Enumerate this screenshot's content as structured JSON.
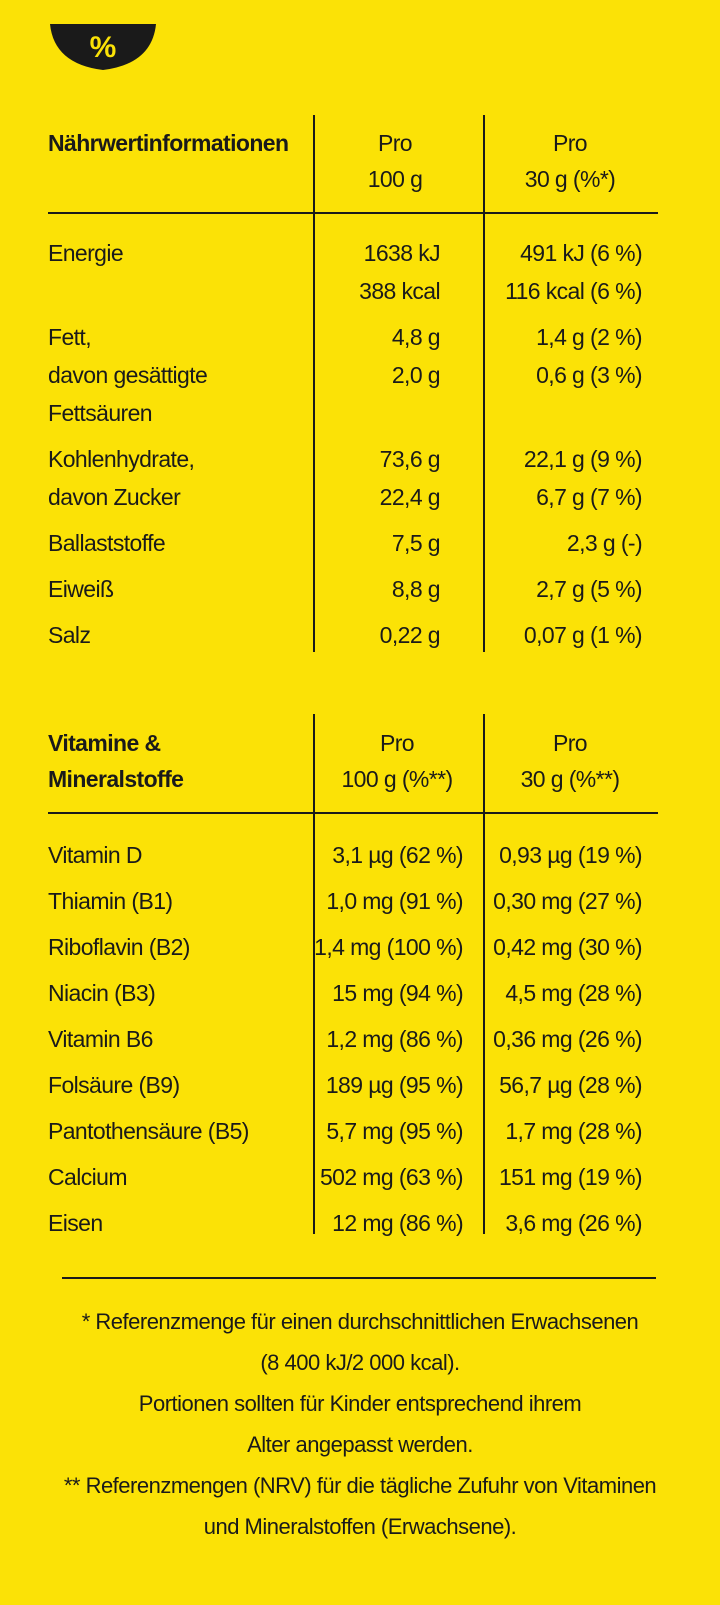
{
  "icon": "%",
  "nutrition": {
    "header": [
      [
        "Nährwertinformationen"
      ],
      [
        "Pro",
        "100 g"
      ],
      [
        "Pro",
        "30 g (%*)"
      ]
    ],
    "rows": [
      [
        [
          "Energie"
        ],
        [
          "1638 kJ",
          "388 kcal"
        ],
        [
          "491 kJ (6 %)",
          "116 kcal (6 %)"
        ]
      ],
      [
        [
          "Fett,",
          "davon gesättigte",
          "Fettsäuren"
        ],
        [
          "4,8 g",
          "2,0 g"
        ],
        [
          "1,4 g (2 %)",
          "0,6 g (3 %)"
        ]
      ],
      [
        [
          "Kohlenhydrate,",
          "davon Zucker"
        ],
        [
          "73,6 g",
          "22,4 g"
        ],
        [
          "22,1 g (9 %)",
          "6,7 g (7 %)"
        ]
      ],
      [
        [
          "Ballaststoffe"
        ],
        [
          "7,5 g"
        ],
        [
          "2,3 g (-)"
        ]
      ],
      [
        [
          "Eiweiß"
        ],
        [
          "8,8 g"
        ],
        [
          "2,7 g (5 %)"
        ]
      ],
      [
        [
          "Salz"
        ],
        [
          "0,22 g"
        ],
        [
          "0,07 g (1 %)"
        ]
      ]
    ]
  },
  "vitamins": {
    "header": [
      [
        "Vitamine &",
        "Mineralstoffe"
      ],
      [
        "Pro",
        "100 g (%**)"
      ],
      [
        "Pro",
        "30 g (%**)"
      ]
    ],
    "rows": [
      [
        [
          "Vitamin D"
        ],
        [
          "3,1 µg (62 %)"
        ],
        [
          "0,93 µg (19 %)"
        ]
      ],
      [
        [
          "Thiamin (B1)"
        ],
        [
          "1,0 mg (91 %)"
        ],
        [
          "0,30 mg (27 %)"
        ]
      ],
      [
        [
          "Riboflavin (B2)"
        ],
        [
          "1,4 mg (100 %)"
        ],
        [
          "0,42 mg (30 %)"
        ]
      ],
      [
        [
          "Niacin (B3)"
        ],
        [
          "15 mg (94 %)"
        ],
        [
          "4,5 mg (28 %)"
        ]
      ],
      [
        [
          "Vitamin B6"
        ],
        [
          "1,2 mg (86 %)"
        ],
        [
          "0,36 mg (26 %)"
        ]
      ],
      [
        [
          "Folsäure (B9)"
        ],
        [
          "189 µg (95 %)"
        ],
        [
          "56,7 µg (28 %)"
        ]
      ],
      [
        [
          "Pantothensäure (B5)"
        ],
        [
          "5,7 mg (95 %)"
        ],
        [
          "1,7 mg (28 %)"
        ]
      ],
      [
        [
          "Calcium"
        ],
        [
          "502 mg (63 %)"
        ],
        [
          "151 mg (19 %)"
        ]
      ],
      [
        [
          "Eisen"
        ],
        [
          "12 mg (86 %)"
        ],
        [
          "3,6 mg (26 %)"
        ]
      ]
    ]
  },
  "footnotes": [
    "* Referenzmenge für einen durchschnittlichen Erwachsenen",
    "(8 400 kJ/2 000 kcal).",
    "Portionen sollten für Kinder entsprechend ihrem",
    "Alter angepasst werden.",
    "** Referenzmengen (NRV) für die tägliche Zufuhr von Vitaminen",
    "und Mineralstoffen (Erwachsene)."
  ]
}
